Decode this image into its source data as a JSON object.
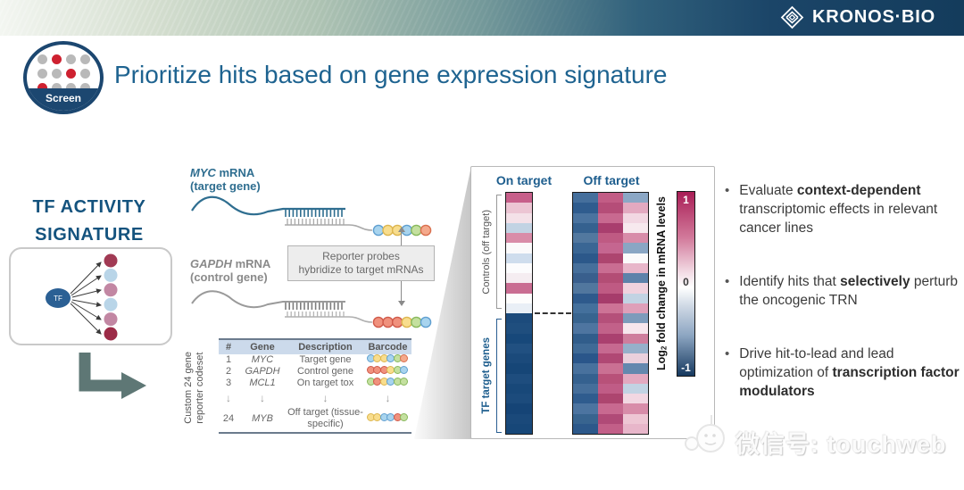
{
  "banner": {
    "logo_text": "KRONOS·BIO"
  },
  "header": {
    "badge_label": "Screen",
    "badge_dots": [
      [
        "gray",
        "red",
        "gray",
        "gray"
      ],
      [
        "gray",
        "gray",
        "red",
        "gray"
      ],
      [
        "red",
        "gray",
        "gray",
        "gray"
      ]
    ],
    "badge_dot_colors": {
      "gray": "#b9b9b9",
      "red": "#ce2130"
    },
    "title": "Prioritize hits based on gene expression signature"
  },
  "left_panel": {
    "heading_line1": "TF ACTIVITY",
    "heading_line2": "SIGNATURE",
    "tf_label": "TF",
    "dot_colors": [
      "#a13a54",
      "#b9d5e8",
      "#c287a3",
      "#b9d5e8",
      "#c287a3",
      "#9c2b47"
    ]
  },
  "probe_diagram": {
    "myc_gene": "MYC",
    "myc_rest": " mRNA",
    "myc_line2": "(target gene)",
    "gapdh_gene": "GAPDH",
    "gapdh_rest": " mRNA",
    "gapdh_line2": "(control gene)",
    "box_line1": "Reporter probes",
    "box_line2": "hybridize to target mRNAs",
    "myc_beads": [
      "blue",
      "yellow",
      "yellow",
      "blue",
      "green",
      "orange"
    ],
    "gapdh_beads": [
      "red",
      "red",
      "red",
      "yellow",
      "green",
      "blue"
    ]
  },
  "bead_palette": {
    "blue": {
      "fill": "#a8d4ee",
      "stroke": "#5f9fd0"
    },
    "yellow": {
      "fill": "#f8dd8d",
      "stroke": "#ddb64f"
    },
    "green": {
      "fill": "#c4e09f",
      "stroke": "#88b85c"
    },
    "orange": {
      "fill": "#f4a98c",
      "stroke": "#d96f4e"
    },
    "red": {
      "fill": "#f0917d",
      "stroke": "#d05a4a"
    }
  },
  "codeset_table": {
    "side_label_line1": "Custom 24 gene",
    "side_label_line2": "reporter codeset",
    "headers": [
      "#",
      "Gene",
      "Description",
      "Barcode"
    ],
    "rows": [
      {
        "num": "1",
        "gene": "MYC",
        "desc": "Target gene",
        "beads": [
          "blue",
          "yellow",
          "yellow",
          "blue",
          "green",
          "orange"
        ]
      },
      {
        "num": "2",
        "gene": "GAPDH",
        "desc": "Control gene",
        "beads": [
          "red",
          "red",
          "red",
          "yellow",
          "green",
          "blue"
        ]
      },
      {
        "num": "3",
        "gene": "MCL1",
        "desc": "On target tox",
        "beads": [
          "green",
          "red",
          "yellow",
          "blue",
          "green",
          "green"
        ]
      },
      {
        "num": "↓",
        "gene": "↓",
        "desc": "↓",
        "beads": null
      },
      {
        "num": "24",
        "gene": "MYB",
        "desc": "Off target (tissue-specific)",
        "beads": [
          "yellow",
          "yellow",
          "blue",
          "blue",
          "red",
          "green"
        ]
      }
    ]
  },
  "heatmap_panel": {
    "col1_title": "On target",
    "col2_title": "Off target",
    "controls_label": "Controls (off target)",
    "tf_label": "TF target genes",
    "colorbar": {
      "label_pre": "Log",
      "label_sub": "2",
      "label_post": " fold change in mRNA levels",
      "max": "1",
      "mid": "0",
      "min": "-1",
      "top_color": "#a91e56",
      "mid_color": "#ffffff",
      "bottom_color": "#16395f"
    },
    "on_target_rows": [
      "#c75f8a",
      "#ecc5d3",
      "#f4e1e8",
      "#c2d3e3",
      "#d98ca8",
      "#fbfafb",
      "#cfdded",
      "#fcfcfd",
      "#f5edf1",
      "#c96d92",
      "#fdfdfd",
      "#e9eff6",
      "#1c4b7c",
      "#1f4e7e",
      "#17487a",
      "#215081",
      "#1b4a7b",
      "#164677",
      "#1e4d7e",
      "#184879",
      "#1c4b7c",
      "#154476",
      "#1a497a",
      "#174778"
    ],
    "off_target_rows": [
      [
        "#456f9c",
        "#c25c85",
        "#8ba7c5"
      ],
      [
        "#2f5c8e",
        "#b54d78",
        "#e3a9c0"
      ],
      [
        "#4a739f",
        "#c86990",
        "#f2d7e2"
      ],
      [
        "#35618f",
        "#a93e6e",
        "#f7e9ee"
      ],
      [
        "#52789f",
        "#bf5a83",
        "#d88ca9"
      ],
      [
        "#3a6694",
        "#c56690",
        "#8aa6c4"
      ],
      [
        "#2c588a",
        "#ad456f",
        "#fbfafb"
      ],
      [
        "#466f9b",
        "#c96d92",
        "#e8b6ca"
      ],
      [
        "#395f8d",
        "#b34d75",
        "#5d82aa"
      ],
      [
        "#51779e",
        "#bf5a83",
        "#f0d2de"
      ],
      [
        "#2e5a8c",
        "#a63c6b",
        "#c2d3e3"
      ],
      [
        "#44709c",
        "#cd7396",
        "#df9fb9"
      ],
      [
        "#38648f",
        "#b5507a",
        "#7d9bbb"
      ],
      [
        "#4e75a0",
        "#c26189",
        "#f7e6ed"
      ],
      [
        "#315d8b",
        "#aa406f",
        "#cf7d9d"
      ],
      [
        "#3f6a96",
        "#c66990",
        "#96b0ca"
      ],
      [
        "#2a568a",
        "#b04874",
        "#ead0dc"
      ],
      [
        "#48719d",
        "#ca7093",
        "#6388ae"
      ],
      [
        "#35618f",
        "#b85179",
        "#e3a9c0"
      ],
      [
        "#456e9a",
        "#c05c86",
        "#c2d3e3"
      ],
      [
        "#2f5c8e",
        "#ad456f",
        "#f2d7e2"
      ],
      [
        "#4c74a0",
        "#c86990",
        "#d88ca9"
      ],
      [
        "#38648f",
        "#b04a77",
        "#eec6d4"
      ],
      [
        "#2c588a",
        "#c25f88",
        "#e8b6ca"
      ]
    ]
  },
  "bullets": [
    {
      "segments": [
        {
          "t": "Evaluate ",
          "b": false
        },
        {
          "t": "context-dependent",
          "b": true
        },
        {
          "t": " transcriptomic effects in relevant cancer lines",
          "b": false
        }
      ]
    },
    {
      "segments": [
        {
          "t": "Identify hits that ",
          "b": false
        },
        {
          "t": "selectively",
          "b": true
        },
        {
          "t": " perturb the oncogenic TRN",
          "b": false
        }
      ]
    },
    {
      "segments": [
        {
          "t": "Drive hit-to-lead and lead optimization of ",
          "b": false
        },
        {
          "t": "transcription factor modulators",
          "b": true
        }
      ]
    }
  ],
  "watermark": {
    "text": "微信号: touchweb"
  }
}
